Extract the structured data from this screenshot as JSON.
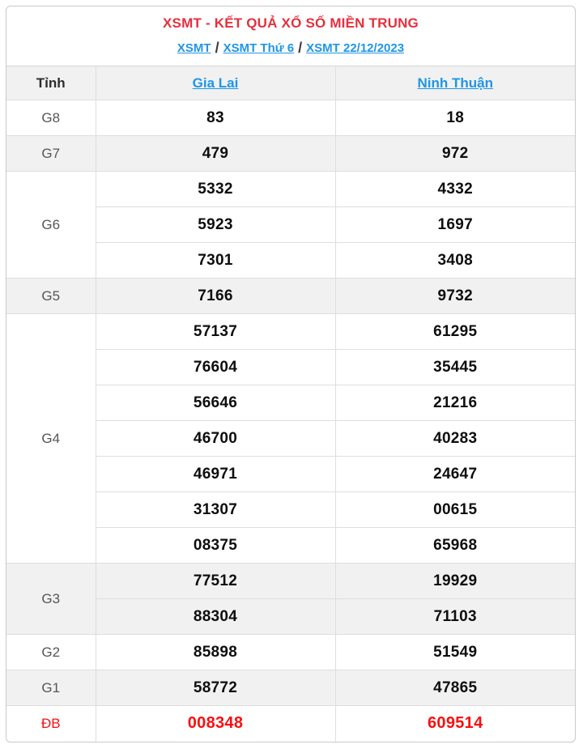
{
  "colors": {
    "title_red": "#e4303c",
    "link_blue": "#1e96e8",
    "special_red": "#f90f0f",
    "shade_bg": "#f1f1f1",
    "border": "#dedede"
  },
  "header": {
    "title": "XSMT - KẾT QUẢ XỔ SỐ MIỀN TRUNG",
    "separator": "/",
    "breadcrumb": [
      {
        "label": "XSMT"
      },
      {
        "label": "XSMT Thứ 6"
      },
      {
        "label": "XSMT 22/12/2023"
      }
    ]
  },
  "table": {
    "columns": [
      {
        "label": "Tỉnh",
        "link": false
      },
      {
        "label": "Gia Lai",
        "link": true
      },
      {
        "label": "Ninh Thuận",
        "link": true
      }
    ],
    "groups": [
      {
        "prize": "G8",
        "shade": false,
        "special": false,
        "rows": [
          [
            "83",
            "18"
          ]
        ]
      },
      {
        "prize": "G7",
        "shade": true,
        "special": false,
        "rows": [
          [
            "479",
            "972"
          ]
        ]
      },
      {
        "prize": "G6",
        "shade": false,
        "special": false,
        "rows": [
          [
            "5332",
            "4332"
          ],
          [
            "5923",
            "1697"
          ],
          [
            "7301",
            "3408"
          ]
        ]
      },
      {
        "prize": "G5",
        "shade": true,
        "special": false,
        "rows": [
          [
            "7166",
            "9732"
          ]
        ]
      },
      {
        "prize": "G4",
        "shade": false,
        "special": false,
        "rows": [
          [
            "57137",
            "61295"
          ],
          [
            "76604",
            "35445"
          ],
          [
            "56646",
            "21216"
          ],
          [
            "46700",
            "40283"
          ],
          [
            "46971",
            "24647"
          ],
          [
            "31307",
            "00615"
          ],
          [
            "08375",
            "65968"
          ]
        ]
      },
      {
        "prize": "G3",
        "shade": true,
        "special": false,
        "rows": [
          [
            "77512",
            "19929"
          ],
          [
            "88304",
            "71103"
          ]
        ]
      },
      {
        "prize": "G2",
        "shade": false,
        "special": false,
        "rows": [
          [
            "85898",
            "51549"
          ]
        ]
      },
      {
        "prize": "G1",
        "shade": true,
        "special": false,
        "rows": [
          [
            "58772",
            "47865"
          ]
        ]
      },
      {
        "prize": "ĐB",
        "shade": false,
        "special": true,
        "rows": [
          [
            "008348",
            "609514"
          ]
        ]
      }
    ]
  }
}
